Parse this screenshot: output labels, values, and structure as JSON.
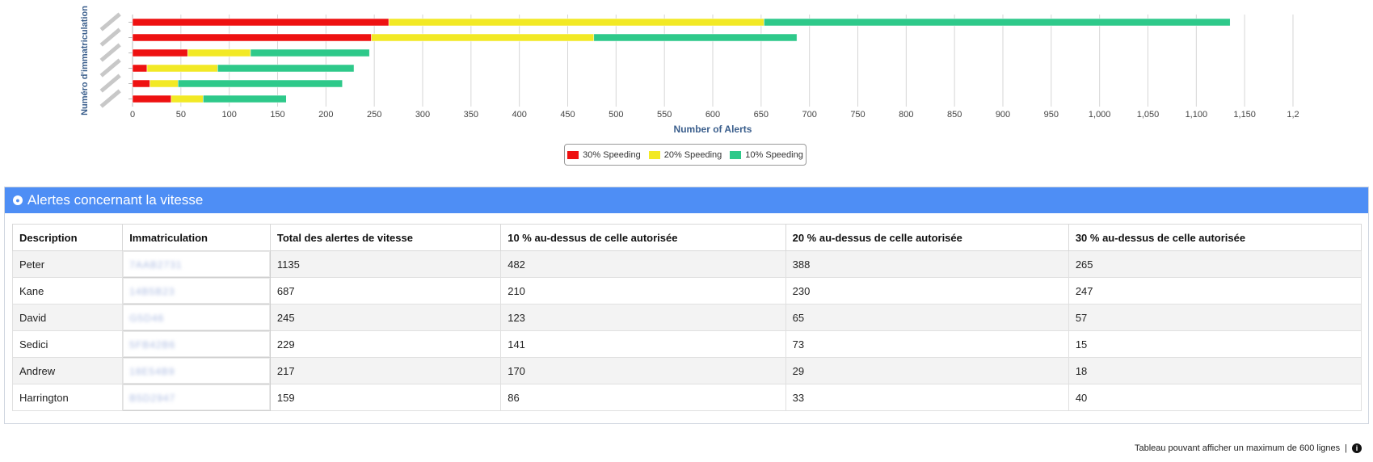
{
  "chart_data": {
    "type": "bar",
    "orientation": "horizontal",
    "stacked": true,
    "xlabel": "Number of Alerts",
    "ylabel": "Numéro d'immatriculation",
    "xlim": [
      0,
      1200
    ],
    "x_ticks": [
      "0",
      "50",
      "100",
      "150",
      "200",
      "250",
      "300",
      "350",
      "400",
      "450",
      "500",
      "550",
      "600",
      "650",
      "700",
      "750",
      "800",
      "850",
      "900",
      "950",
      "1,000",
      "1,050",
      "1,100",
      "1,150",
      "1,2"
    ],
    "categories": [
      "",
      "",
      "",
      "",
      "",
      ""
    ],
    "series": [
      {
        "name": "30% Speeding",
        "color": "#ee1111",
        "values": [
          265,
          247,
          57,
          15,
          18,
          40
        ]
      },
      {
        "name": "20% Speeding",
        "color": "#f2e925",
        "values": [
          388,
          230,
          65,
          73,
          29,
          33
        ]
      },
      {
        "name": "10% Speeding",
        "color": "#2ec98a",
        "values": [
          482,
          210,
          123,
          141,
          170,
          86
        ]
      }
    ],
    "grid": true,
    "legend_position": "bottom-center"
  },
  "panel": {
    "title": "Alertes concernant la vitesse",
    "columns": [
      "Description",
      "Immatriculation",
      "Total des alertes de vitesse",
      "10 % au-dessus de celle autorisée",
      "20 % au-dessus de celle autorisée",
      "30 % au-dessus de celle autorisée"
    ],
    "rows": [
      {
        "description": "Peter",
        "plate": "7AAB2731",
        "total": "1135",
        "p10": "482",
        "p20": "388",
        "p30": "265"
      },
      {
        "description": "Kane",
        "plate": "14B5B23",
        "total": "687",
        "p10": "210",
        "p20": "230",
        "p30": "247"
      },
      {
        "description": "David",
        "plate": "G5D46",
        "total": "245",
        "p10": "123",
        "p20": "65",
        "p30": "57"
      },
      {
        "description": "Sedici",
        "plate": "5FB42B6",
        "total": "229",
        "p10": "141",
        "p20": "73",
        "p30": "15"
      },
      {
        "description": "Andrew",
        "plate": "18E54B9",
        "total": "217",
        "p10": "170",
        "p20": "29",
        "p30": "18"
      },
      {
        "description": "Harrington",
        "plate": "B5D2947",
        "total": "159",
        "p10": "86",
        "p20": "33",
        "p30": "40"
      }
    ]
  },
  "footer": {
    "text": "Tableau pouvant afficher un maximum de 600 lignes",
    "separator": "|",
    "icon": "info-icon"
  },
  "colors": {
    "header": "#4e8ef5",
    "axis_label": "#3a5e8c"
  }
}
